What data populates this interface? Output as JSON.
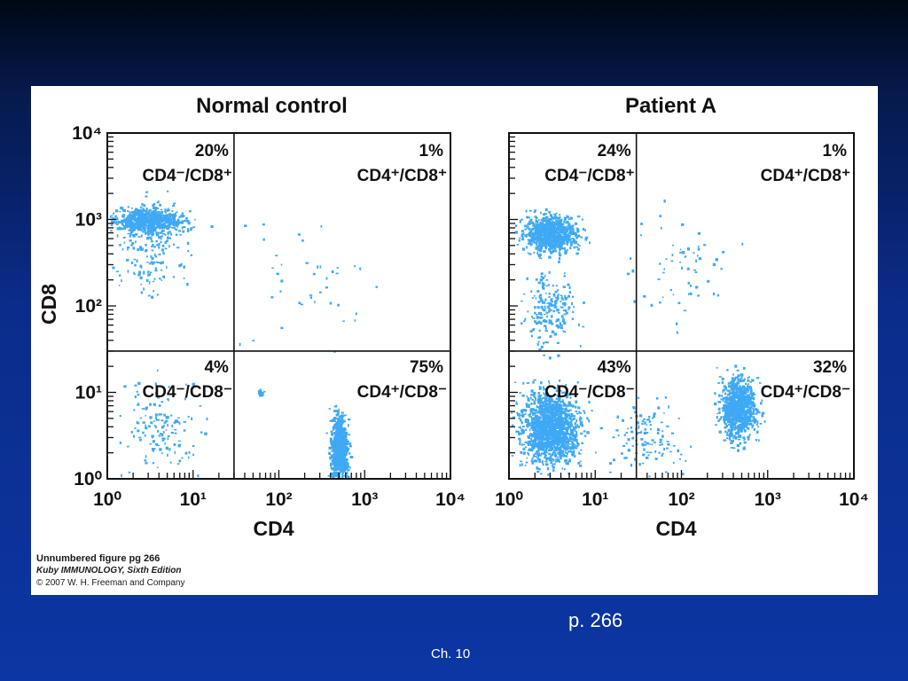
{
  "slide": {
    "page_ref": "p. 266",
    "chapter": "Ch. 10"
  },
  "figure": {
    "caption": {
      "line1": "Unnumbered figure pg 266",
      "line2": "Kuby IMMUNOLOGY, Sixth Edition",
      "line3": "© 2007 W. H. Freeman and Company"
    }
  },
  "colors": {
    "dots": "#3fa9f5",
    "frame": "#111111",
    "panel": "#ffffff"
  },
  "chart_data": [
    {
      "type": "scatter",
      "title": "Normal control",
      "xlabel": "CD4",
      "ylabel": "CD8",
      "scale": "log",
      "xlim": [
        1,
        10000
      ],
      "ylim": [
        1,
        10000
      ],
      "xticks": [
        "10⁰",
        "10¹",
        "10²",
        "10³",
        "10⁴"
      ],
      "yticks": [
        "10⁰",
        "10¹",
        "10²",
        "10³",
        "10⁴"
      ],
      "quadrant_split": {
        "x": 30,
        "y": 30
      },
      "quadrants": [
        {
          "position": "top-left",
          "percent": "20%",
          "phenotype": "CD4⁻/CD8⁺"
        },
        {
          "position": "top-right",
          "percent": "1%",
          "phenotype": "CD4⁺/CD8⁺"
        },
        {
          "position": "bottom-left",
          "percent": "4%",
          "phenotype": "CD4⁻/CD8⁻"
        },
        {
          "position": "bottom-right",
          "percent": "75%",
          "phenotype": "CD4⁺/CD8⁻"
        }
      ]
    },
    {
      "type": "scatter",
      "title": "Patient A",
      "xlabel": "CD4",
      "ylabel": "",
      "scale": "log",
      "xlim": [
        1,
        10000
      ],
      "ylim": [
        1,
        10000
      ],
      "xticks": [
        "10⁰",
        "10¹",
        "10²",
        "10³",
        "10⁴"
      ],
      "yticks": [],
      "quadrant_split": {
        "x": 30,
        "y": 30
      },
      "quadrants": [
        {
          "position": "top-left",
          "percent": "24%",
          "phenotype": "CD4⁻/CD8⁺"
        },
        {
          "position": "top-right",
          "percent": "1%",
          "phenotype": "CD4⁺/CD8⁺"
        },
        {
          "position": "bottom-left",
          "percent": "43%",
          "phenotype": "CD4⁻/CD8⁻"
        },
        {
          "position": "bottom-right",
          "percent": "32%",
          "phenotype": "CD4⁺/CD8⁻"
        }
      ]
    }
  ]
}
